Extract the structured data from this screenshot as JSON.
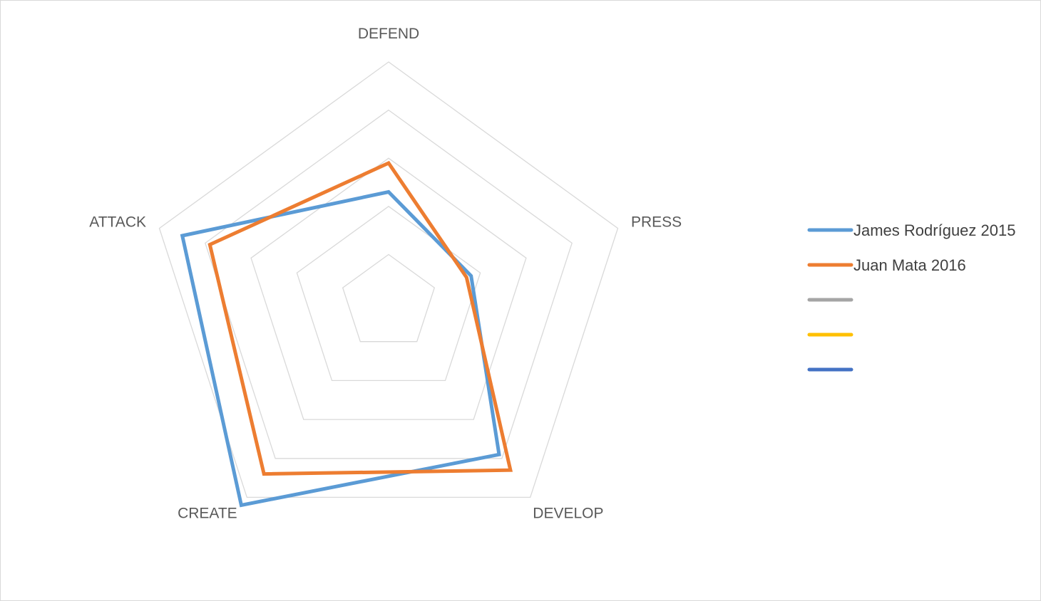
{
  "chart_data": {
    "type": "radar",
    "title": "",
    "axes": [
      "DEFEND",
      "PRESS",
      "DEVELOP",
      "CREATE",
      "ATTACK"
    ],
    "rlim": [
      0,
      5
    ],
    "grid": true,
    "legend": "right",
    "series": [
      {
        "name": "James Rodríguez 2015",
        "color": "#5b9bd5",
        "values": [
          2.3,
          1.8,
          3.9,
          5.2,
          4.5
        ]
      },
      {
        "name": "Juan Mata 2016",
        "color": "#ed7d31",
        "values": [
          2.9,
          1.7,
          4.3,
          4.4,
          3.9
        ]
      },
      {
        "name": "",
        "color": "#a5a5a5",
        "values": []
      },
      {
        "name": "",
        "color": "#ffc000",
        "values": []
      },
      {
        "name": "",
        "color": "#4472c4",
        "values": []
      }
    ]
  }
}
